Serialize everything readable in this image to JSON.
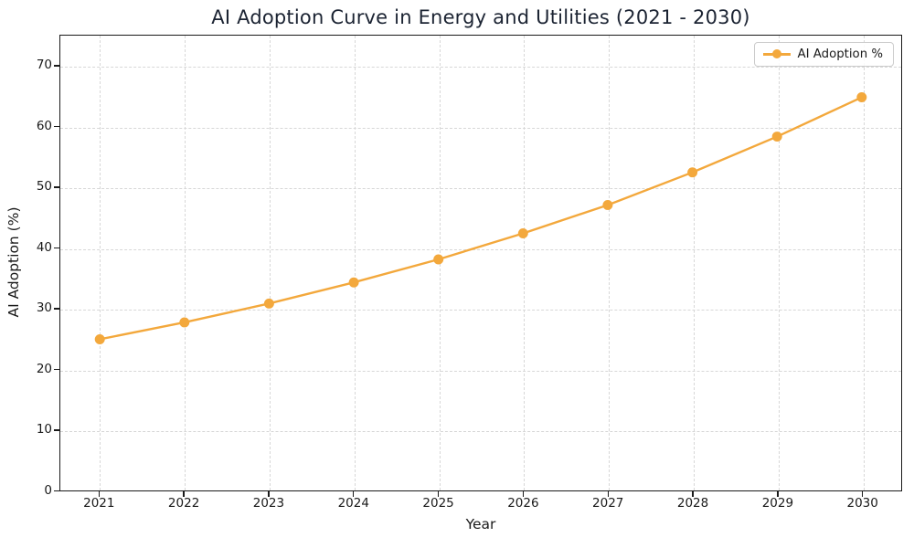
{
  "chart_data": {
    "type": "line",
    "title": "AI Adoption Curve in Energy and Utilities (2021 - 2030)",
    "xlabel": "Year",
    "ylabel": "AI Adoption (%)",
    "categories": [
      "2021",
      "2022",
      "2023",
      "2024",
      "2025",
      "2026",
      "2027",
      "2028",
      "2029",
      "2030"
    ],
    "series": [
      {
        "name": "AI Adoption %",
        "values": [
          25.0,
          27.8,
          30.9,
          34.4,
          38.2,
          42.5,
          47.2,
          52.6,
          58.5,
          65.0
        ],
        "color": "#F3A83C",
        "marker": "circle"
      }
    ],
    "yticks": [
      0,
      10,
      20,
      30,
      40,
      50,
      60,
      70
    ],
    "ylim": [
      0,
      75.2
    ],
    "grid": true,
    "grid_style": "dashed",
    "legend_position": "upper right"
  },
  "colors": {
    "line": "#F3A83C",
    "grid": "#D7D7D7",
    "axis": "#1A1A1A",
    "title_text": "#1C2433",
    "legend_border": "#CCCCCC",
    "background": "#FFFFFF"
  }
}
